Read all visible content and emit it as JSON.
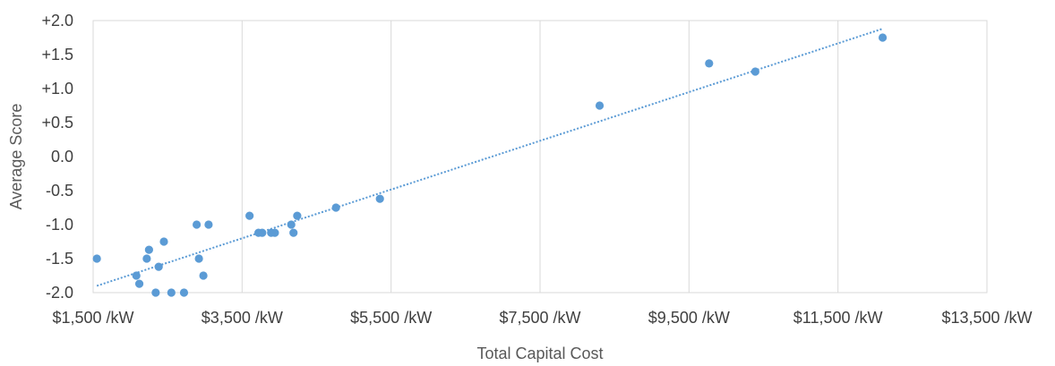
{
  "chart_data": {
    "type": "scatter",
    "title": "",
    "xlabel": "Total Capital Cost",
    "ylabel": "Average Score",
    "xlim": [
      1500,
      13500
    ],
    "ylim": [
      -2.0,
      2.0
    ],
    "x_ticks": [
      1500,
      3500,
      5500,
      7500,
      9500,
      11500,
      13500
    ],
    "x_tick_labels": [
      "$1,500 /kW",
      "$3,500 /kW",
      "$5,500 /kW",
      "$7,500 /kW",
      "$9,500 /kW",
      "$11,500 /kW",
      "$13,500 /kW"
    ],
    "y_ticks": [
      2.0,
      1.5,
      1.0,
      0.5,
      0.0,
      -0.5,
      -1.0,
      -1.5,
      -2.0
    ],
    "y_tick_labels": [
      "+2.0",
      "+1.5",
      "+1.0",
      "+0.5",
      "0.0",
      "-0.5",
      "-1.0",
      "-1.5",
      "-2.0"
    ],
    "grid": "vertical",
    "legend": "none",
    "point_color": "#5B9BD5",
    "trendline": {
      "type": "linear",
      "style": "dotted",
      "color": "#5B9BD5",
      "x": [
        1550,
        12100
      ],
      "y": [
        -1.9,
        1.88
      ]
    },
    "x": [
      1550,
      2080,
      2120,
      2220,
      2250,
      2340,
      2380,
      2450,
      2550,
      2720,
      2890,
      2920,
      2980,
      3050,
      3600,
      3720,
      3770,
      3890,
      3940,
      4160,
      4190,
      4240,
      4760,
      5350,
      8300,
      9770,
      10390,
      12100
    ],
    "y": [
      -1.5,
      -1.75,
      -1.87,
      -1.5,
      -1.37,
      -2.0,
      -1.62,
      -1.25,
      -2.0,
      -2.0,
      -1.0,
      -1.5,
      -1.75,
      -1.0,
      -0.87,
      -1.12,
      -1.12,
      -1.12,
      -1.12,
      -1.0,
      -1.12,
      -0.87,
      -0.75,
      -0.62,
      0.75,
      1.37,
      1.25,
      1.75
    ]
  }
}
